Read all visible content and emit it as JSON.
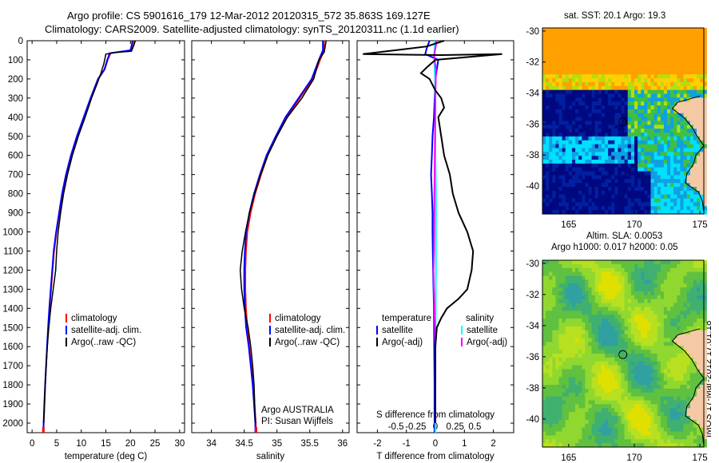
{
  "titles": {
    "line1": "Argo profile: CS 5901616_179 12-Mar-2012 20120315_572 35.863S 169.127E",
    "line2": "Climatology: CARS2009. Satellite-adjusted climatology: synTS_20120311.nc (1.1d earlier)"
  },
  "stamp": "IMOS 17-Mar-2012 17:01:18",
  "colors": {
    "climatology": "#ff0000",
    "satellite": "#0000ff",
    "argo": "#000000",
    "sal_satellite": "#00ffff",
    "sal_argo": "#ff00ff",
    "land": "#f5c9a6"
  },
  "chart_data": [
    {
      "type": "line",
      "xlabel": "temperature (deg C)",
      "xlim": [
        -1,
        31
      ],
      "xticks": [
        0,
        5,
        10,
        15,
        20,
        25,
        30
      ],
      "ylim": [
        0,
        2050
      ],
      "yticks": [
        0,
        100,
        200,
        300,
        400,
        500,
        600,
        700,
        800,
        900,
        1000,
        1100,
        1200,
        1300,
        1400,
        1500,
        1600,
        1700,
        1800,
        1900,
        2000
      ],
      "legend": [
        "climatology",
        "satellite-adj. clim.",
        "Argo(..raw -QC)"
      ],
      "series": [
        {
          "name": "climatology",
          "color": "#ff0000",
          "points": [
            [
              20.7,
              0
            ],
            [
              20.6,
              20
            ],
            [
              20.2,
              50
            ],
            [
              16,
              65
            ],
            [
              15.4,
              100
            ],
            [
              14.8,
              150
            ],
            [
              13.5,
              200
            ],
            [
              12,
              300
            ],
            [
              10.6,
              400
            ],
            [
              9.2,
              500
            ],
            [
              8.0,
              600
            ],
            [
              7.0,
              700
            ],
            [
              6.2,
              800
            ],
            [
              5.6,
              900
            ],
            [
              5.0,
              1000
            ],
            [
              4.5,
              1100
            ],
            [
              4.2,
              1200
            ],
            [
              3.9,
              1300
            ],
            [
              3.6,
              1400
            ],
            [
              3.3,
              1500
            ],
            [
              3.1,
              1600
            ],
            [
              2.9,
              1700
            ],
            [
              2.7,
              1800
            ],
            [
              2.55,
              1900
            ],
            [
              2.4,
              2000
            ],
            [
              2.35,
              2050
            ]
          ]
        },
        {
          "name": "satellite-adj. clim.",
          "color": "#0000ff",
          "points": [
            [
              20.4,
              0
            ],
            [
              20.3,
              20
            ],
            [
              20.0,
              50
            ],
            [
              15.8,
              65
            ],
            [
              15.3,
              100
            ],
            [
              14.7,
              150
            ],
            [
              13.4,
              200
            ],
            [
              11.9,
              300
            ],
            [
              10.5,
              400
            ],
            [
              9.1,
              500
            ],
            [
              7.9,
              600
            ],
            [
              6.9,
              700
            ],
            [
              6.1,
              800
            ],
            [
              5.5,
              900
            ],
            [
              4.9,
              1000
            ],
            [
              4.4,
              1100
            ],
            [
              4.1,
              1200
            ],
            [
              3.8,
              1300
            ],
            [
              3.5,
              1400
            ],
            [
              3.25,
              1500
            ],
            [
              3.05,
              1600
            ],
            [
              2.85,
              1700
            ],
            [
              2.65,
              1800
            ],
            [
              2.5,
              1900
            ],
            [
              2.35,
              2000
            ],
            [
              2.3,
              2050
            ]
          ]
        },
        {
          "name": "Argo(..raw -QC)",
          "color": "#000000",
          "points": [
            [
              21.0,
              0
            ],
            [
              20.6,
              30
            ],
            [
              20.2,
              55
            ],
            [
              17,
              62
            ],
            [
              15.0,
              70
            ],
            [
              14.6,
              120
            ],
            [
              14.0,
              170
            ],
            [
              13.3,
              220
            ],
            [
              12.1,
              300
            ],
            [
              10.8,
              400
            ],
            [
              9.4,
              500
            ],
            [
              8.2,
              600
            ],
            [
              7.2,
              700
            ],
            [
              6.4,
              800
            ],
            [
              5.8,
              900
            ],
            [
              5.3,
              1000
            ],
            [
              5.0,
              1100
            ],
            [
              4.8,
              1200
            ],
            [
              4.3,
              1300
            ],
            [
              3.8,
              1400
            ],
            [
              3.4,
              1500
            ],
            [
              3.1,
              1600
            ],
            [
              2.85,
              1700
            ],
            [
              2.65,
              1800
            ],
            [
              2.5,
              1900
            ],
            [
              2.35,
              2000
            ]
          ]
        }
      ]
    },
    {
      "type": "line",
      "xlabel": "salinity",
      "xlim": [
        33.7,
        36.1
      ],
      "xticks": [
        34,
        34.5,
        35,
        35.5,
        36
      ],
      "ylim": [
        0,
        2050
      ],
      "legend": [
        "climatology",
        "satellite-adj. clim.",
        "Argo(..raw -QC)"
      ],
      "annotations": [
        "Argo AUSTRALIA",
        "PI: Susan Wijffels"
      ],
      "series": [
        {
          "name": "climatology",
          "color": "#ff0000",
          "points": [
            [
              35.72,
              0
            ],
            [
              35.72,
              50
            ],
            [
              35.66,
              100
            ],
            [
              35.55,
              200
            ],
            [
              35.35,
              300
            ],
            [
              35.15,
              400
            ],
            [
              35.0,
              500
            ],
            [
              34.86,
              600
            ],
            [
              34.76,
              700
            ],
            [
              34.67,
              800
            ],
            [
              34.6,
              900
            ],
            [
              34.55,
              1000
            ],
            [
              34.53,
              1100
            ],
            [
              34.52,
              1200
            ],
            [
              34.52,
              1300
            ],
            [
              34.53,
              1400
            ],
            [
              34.55,
              1500
            ],
            [
              34.58,
              1600
            ],
            [
              34.61,
              1700
            ],
            [
              34.64,
              1800
            ],
            [
              34.66,
              1900
            ],
            [
              34.68,
              2000
            ],
            [
              34.68,
              2050
            ]
          ]
        },
        {
          "name": "satellite-adj. clim.",
          "color": "#0000ff",
          "points": [
            [
              35.7,
              0
            ],
            [
              35.7,
              50
            ],
            [
              35.64,
              100
            ],
            [
              35.53,
              200
            ],
            [
              35.33,
              300
            ],
            [
              35.13,
              400
            ],
            [
              34.98,
              500
            ],
            [
              34.84,
              600
            ],
            [
              34.74,
              700
            ],
            [
              34.65,
              800
            ],
            [
              34.58,
              900
            ],
            [
              34.53,
              1000
            ],
            [
              34.51,
              1100
            ],
            [
              34.5,
              1200
            ],
            [
              34.5,
              1300
            ],
            [
              34.51,
              1400
            ],
            [
              34.53,
              1500
            ],
            [
              34.57,
              1600
            ],
            [
              34.6,
              1700
            ],
            [
              34.63,
              1800
            ],
            [
              34.65,
              1900
            ],
            [
              34.67,
              2000
            ],
            [
              34.67,
              2050
            ]
          ]
        },
        {
          "name": "Argo(..raw -QC)",
          "color": "#000000",
          "points": [
            [
              35.75,
              0
            ],
            [
              35.72,
              60
            ],
            [
              35.64,
              100
            ],
            [
              35.56,
              200
            ],
            [
              35.38,
              300
            ],
            [
              35.16,
              400
            ],
            [
              35.0,
              500
            ],
            [
              34.86,
              600
            ],
            [
              34.75,
              700
            ],
            [
              34.66,
              800
            ],
            [
              34.58,
              900
            ],
            [
              34.52,
              1000
            ],
            [
              34.47,
              1100
            ],
            [
              34.44,
              1200
            ],
            [
              34.46,
              1300
            ],
            [
              34.5,
              1400
            ],
            [
              34.56,
              1500
            ],
            [
              34.6,
              1600
            ],
            [
              34.63,
              1700
            ],
            [
              34.65,
              1800
            ],
            [
              34.66,
              1900
            ],
            [
              34.67,
              2000
            ]
          ]
        }
      ]
    },
    {
      "type": "line",
      "xlabel": "T difference from climatology",
      "xlim": [
        -2.7,
        2.7
      ],
      "xticks": [
        -2,
        -1,
        0,
        1,
        2
      ],
      "x2label": "S difference from climatology",
      "x2ticks": [
        -0.5,
        -0.25,
        0,
        0.25,
        0.5
      ],
      "ylim": [
        0,
        2050
      ],
      "legend_headers": [
        "temperature",
        "salinity"
      ],
      "legend": [
        "satellite",
        "Argo(-adj)",
        "satellite",
        "Argo(-adj)"
      ],
      "series": [
        {
          "name": "satellite",
          "color": "#0000ff",
          "points": [
            [
              -0.2,
              0
            ],
            [
              -0.3,
              40
            ],
            [
              -0.35,
              70
            ],
            [
              0.1,
              100
            ],
            [
              0.0,
              200
            ],
            [
              -0.05,
              400
            ],
            [
              -0.1,
              500
            ],
            [
              -0.12,
              600
            ],
            [
              -0.15,
              700
            ],
            [
              -0.12,
              800
            ],
            [
              -0.1,
              900
            ],
            [
              -0.1,
              1000
            ],
            [
              -0.08,
              1200
            ],
            [
              -0.05,
              1400
            ],
            [
              -0.04,
              1600
            ],
            [
              -0.03,
              1800
            ],
            [
              -0.03,
              2000
            ],
            [
              -0.03,
              2050
            ]
          ]
        },
        {
          "name": "Argo(-adj)",
          "color": "#000000",
          "points": [
            [
              0.3,
              0
            ],
            [
              -0.3,
              30
            ],
            [
              -2.5,
              70
            ],
            [
              0.2,
              75
            ],
            [
              2.3,
              70
            ],
            [
              0.0,
              100
            ],
            [
              -0.3,
              140
            ],
            [
              -0.5,
              170
            ],
            [
              -0.2,
              200
            ],
            [
              0.0,
              260
            ],
            [
              0.2,
              300
            ],
            [
              0.3,
              350
            ],
            [
              0.1,
              400
            ],
            [
              0.2,
              500
            ],
            [
              0.3,
              600
            ],
            [
              0.5,
              700
            ],
            [
              0.6,
              800
            ],
            [
              0.8,
              900
            ],
            [
              1.1,
              1000
            ],
            [
              1.3,
              1100
            ],
            [
              1.25,
              1200
            ],
            [
              1.1,
              1300
            ],
            [
              0.8,
              1350
            ],
            [
              0.4,
              1400
            ],
            [
              0.2,
              1450
            ],
            [
              0.05,
              1500
            ],
            [
              0.0,
              1600
            ],
            [
              0.0,
              1800
            ],
            [
              0.0,
              2000
            ]
          ]
        },
        {
          "name": "satellite",
          "color": "#00ffff",
          "points": [
            [
              -0.02,
              0
            ],
            [
              -0.04,
              100
            ],
            [
              -0.01,
              200
            ],
            [
              0.0,
              400
            ],
            [
              0.0,
              600
            ],
            [
              0.02,
              800
            ],
            [
              0.02,
              1000
            ],
            [
              0.02,
              1200
            ],
            [
              0.01,
              1400
            ],
            [
              0.0,
              1600
            ],
            [
              0.0,
              2000
            ],
            [
              0.0,
              2050
            ]
          ]
        },
        {
          "name": "Argo(-adj)",
          "color": "#ff00ff",
          "points": [
            [
              0.05,
              0
            ],
            [
              -0.05,
              80
            ],
            [
              0.02,
              150
            ],
            [
              0.0,
              300
            ],
            [
              -0.02,
              600
            ],
            [
              -0.04,
              900
            ],
            [
              -0.05,
              1100
            ],
            [
              -0.07,
              1200
            ],
            [
              -0.05,
              1300
            ],
            [
              -0.03,
              1400
            ],
            [
              -0.01,
              1500
            ],
            [
              0.0,
              1600
            ],
            [
              0.0,
              1800
            ],
            [
              0.0,
              2000
            ]
          ]
        }
      ]
    },
    {
      "type": "heatmap",
      "title": "sat. SST: 20.1 Argo: 19.3",
      "xlim": [
        163,
        175.3
      ],
      "ylim": [
        -41.8,
        -29.8
      ],
      "xticks": [
        165,
        170,
        175
      ],
      "yticks": [
        -30,
        -32,
        -34,
        -36,
        -38,
        -40
      ],
      "marker": [
        169.13,
        -35.86
      ]
    },
    {
      "type": "heatmap",
      "title": "Altim. SLA: 0.0053",
      "subtitle": "Argo h1000: 0.017 h2000: 0.05",
      "xlim": [
        163,
        175.3
      ],
      "ylim": [
        -41.8,
        -29.8
      ],
      "xticks": [
        165,
        170,
        175
      ],
      "yticks": [
        -30,
        -32,
        -34,
        -36,
        -38,
        -40
      ],
      "marker": [
        169.13,
        -35.86
      ]
    }
  ]
}
